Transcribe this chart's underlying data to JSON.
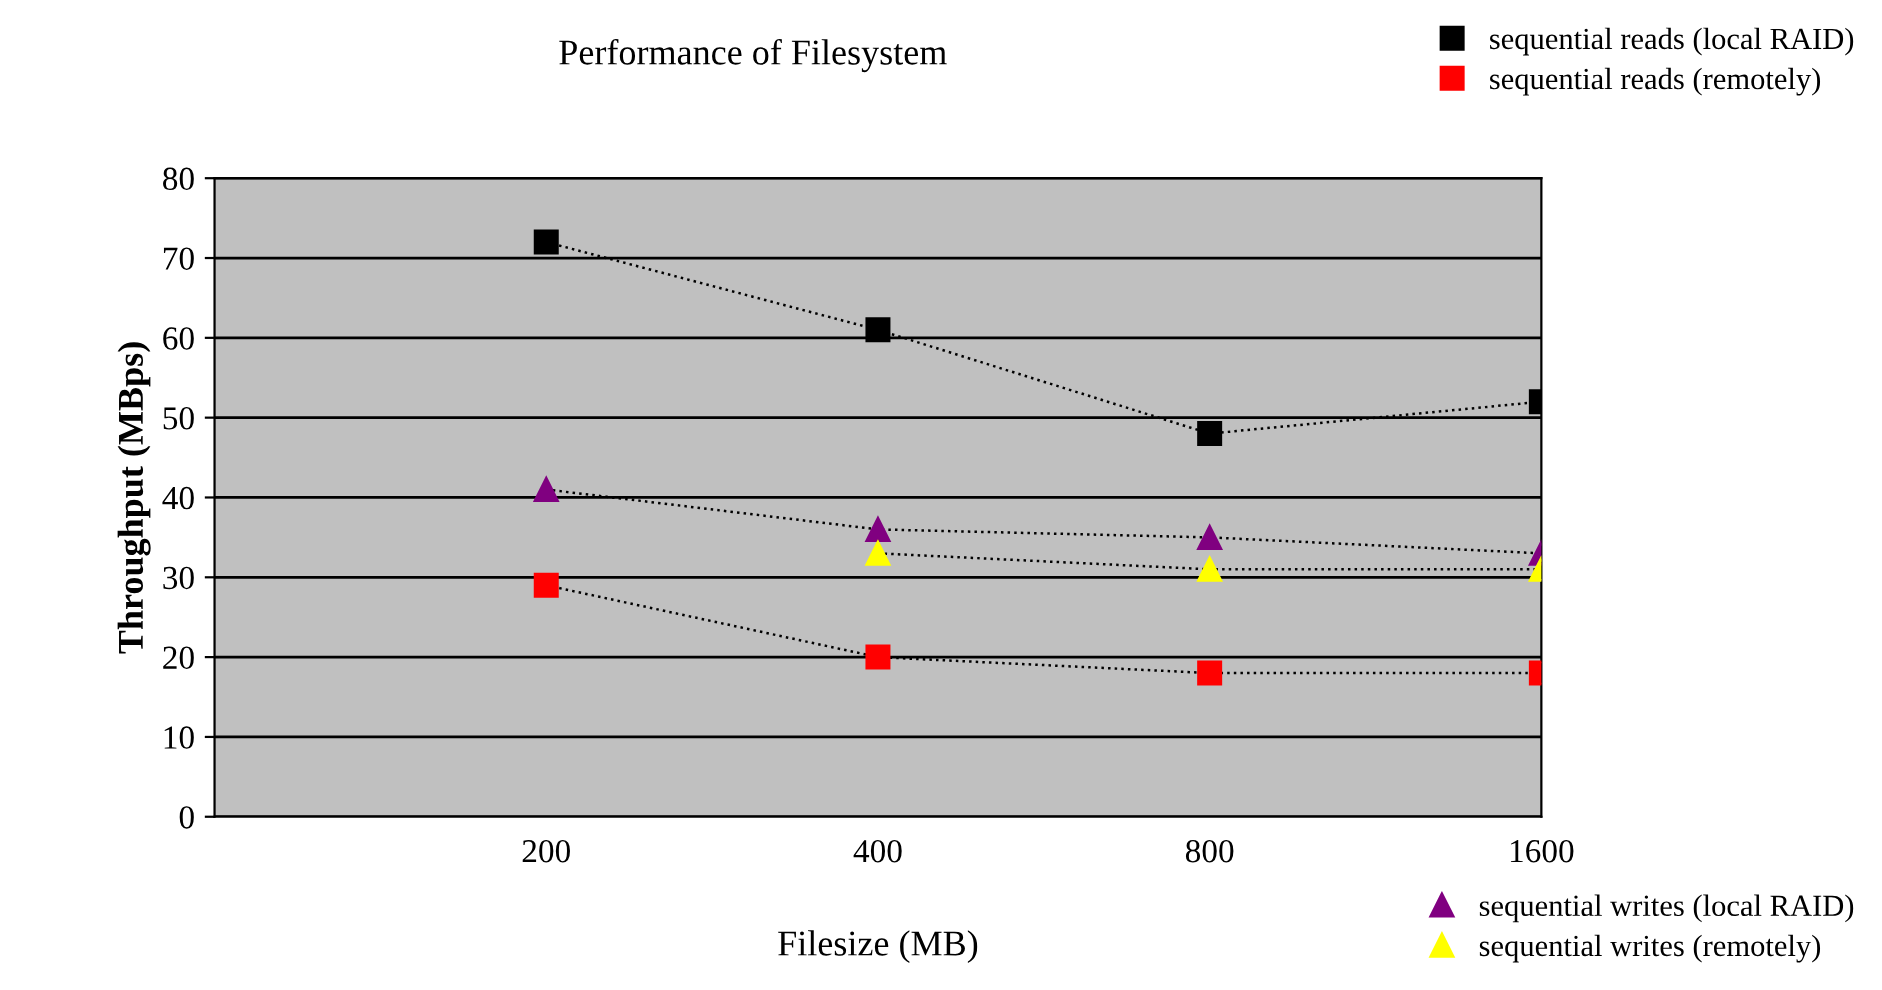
{
  "chart_data": {
    "type": "line",
    "title": "Performance of Filesystem",
    "xlabel": "Filesize (MB)",
    "ylabel": "Throughput (MBps)",
    "categories": [
      null,
      "200",
      "400",
      "800",
      "1600"
    ],
    "series": [
      {
        "name": "sequential reads (local RAID)",
        "color": "#000000",
        "marker": "square",
        "values": [
          null,
          72,
          61,
          48,
          52
        ]
      },
      {
        "name": "sequential reads (remotely)",
        "color": "#ff0000",
        "marker": "square",
        "values": [
          null,
          29,
          20,
          18,
          18
        ]
      },
      {
        "name": "sequential writes (local RAID)",
        "color": "#800080",
        "marker": "triangle",
        "values": [
          null,
          41,
          36,
          35,
          33
        ]
      },
      {
        "name": "sequential writes (remotely)",
        "color": "#ffff00",
        "marker": "triangle",
        "values": [
          null,
          null,
          33,
          31,
          31
        ]
      }
    ],
    "ylim": [
      0,
      80
    ],
    "yticks": [
      0,
      10,
      20,
      30,
      40,
      50,
      60,
      70,
      80
    ],
    "grid": "y",
    "line_style": "dotted",
    "legend": "right"
  }
}
